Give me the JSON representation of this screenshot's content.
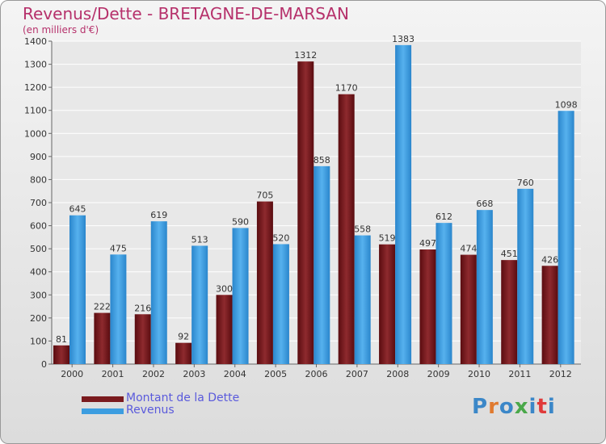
{
  "title": "Revenus/Dette - BRETAGNE-DE-MARSAN",
  "subtitle": "(en milliers d'€)",
  "logo": {
    "text": "Proxiti",
    "colors": [
      "#3b87c8",
      "#e07a2f",
      "#3b87c8",
      "#4aa84a",
      "#3b87c8",
      "#e03a3a",
      "#3b87c8"
    ]
  },
  "chart_data": {
    "type": "bar",
    "categories": [
      "2000",
      "2001",
      "2002",
      "2003",
      "2004",
      "2005",
      "2006",
      "2007",
      "2008",
      "2009",
      "2010",
      "2011",
      "2012"
    ],
    "series": [
      {
        "name": "Montant de la Dette",
        "color": "#7a1a1e",
        "values": [
          81,
          222,
          216,
          92,
          300,
          705,
          1312,
          1170,
          519,
          497,
          474,
          451,
          426
        ]
      },
      {
        "name": "Revenus",
        "color": "#3c9de0",
        "values": [
          645,
          475,
          619,
          513,
          590,
          520,
          858,
          558,
          1383,
          612,
          668,
          760,
          1098
        ]
      }
    ],
    "y_ticks": [
      "0",
      "100",
      "200",
      "300",
      "400",
      "500",
      "600",
      "700",
      "800",
      "900",
      "1000",
      "1100",
      "1200",
      "1300",
      "1400"
    ],
    "ylim": [
      0,
      1400
    ],
    "grid": true,
    "legend_position": "bottom-left"
  }
}
